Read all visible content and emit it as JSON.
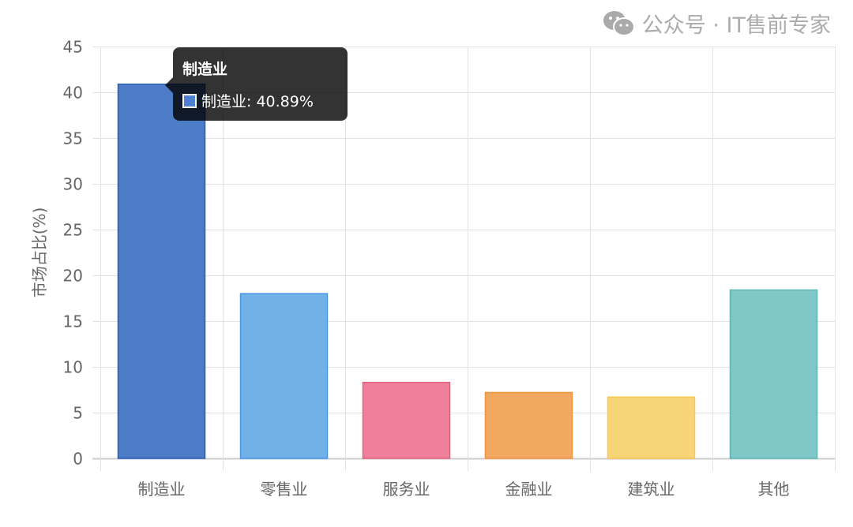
{
  "chart_data": {
    "type": "bar",
    "categories": [
      "制造业",
      "零售业",
      "服务业",
      "金融业",
      "建筑业",
      "其他"
    ],
    "values": [
      40.89,
      18.0,
      8.3,
      7.2,
      6.7,
      18.4
    ],
    "colors": [
      "#3a6fc0",
      "#62a8e6",
      "#ec7290",
      "#ef9f4f",
      "#f7cf6a",
      "#72c2c2"
    ],
    "border_colors": [
      "#2d5cb3",
      "#4a96e0",
      "#e5607e",
      "#ec9640",
      "#f5c850",
      "#5db6b6"
    ],
    "ylabel": "市场占比(%)",
    "xlabel": "",
    "ylim": [
      0,
      45
    ],
    "yticks": [
      0,
      5,
      10,
      15,
      20,
      25,
      30,
      35,
      40,
      45
    ],
    "grid": true,
    "legend": "none"
  },
  "tooltip": {
    "title": "制造业",
    "label": "制造业: 40.89%",
    "swatch_color": "#4f7fd0"
  },
  "watermark": {
    "text": "公众号 · IT售前专家",
    "icon": "wechat-icon"
  }
}
